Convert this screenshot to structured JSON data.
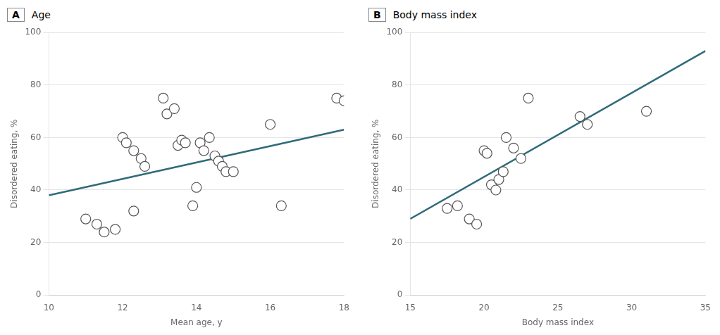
{
  "chart_data": [
    {
      "type": "scatter",
      "title": "Age",
      "annotations": [
        "A"
      ],
      "x_label": "Mean age, y",
      "y_label": "Disordered eating, %",
      "xlim": [
        10,
        18
      ],
      "ylim": [
        0,
        100
      ],
      "xticks": [
        10,
        12,
        14,
        16,
        18
      ],
      "yticks": [
        0,
        20,
        40,
        60,
        80,
        100
      ],
      "grid": "y",
      "series": [
        {
          "type": "line",
          "color": "#2e6b7a",
          "line_style": "solid",
          "x": [
            10,
            18
          ],
          "values": [
            38,
            63
          ]
        },
        {
          "type": "scatter",
          "color": "#555555",
          "marker": "open_circle",
          "x": [
            11.0,
            11.3,
            11.5,
            11.8,
            12.0,
            12.1,
            12.3,
            12.5,
            12.6,
            12.3,
            13.1,
            13.2,
            13.4,
            13.5,
            13.6,
            13.7,
            13.9,
            14.0,
            14.1,
            14.2,
            14.35,
            14.5,
            14.6,
            14.7,
            14.8,
            15.0,
            16.0,
            16.3,
            17.8,
            18.0
          ],
          "values": [
            29,
            27,
            24,
            25,
            60,
            58,
            55,
            52,
            49,
            32,
            75,
            69,
            71,
            57,
            59,
            58,
            34,
            41,
            58,
            55,
            60,
            53,
            51,
            49,
            47,
            47,
            65,
            34,
            75,
            74
          ]
        }
      ]
    },
    {
      "type": "scatter",
      "title": "Body mass index",
      "annotations": [
        "B"
      ],
      "x_label": "Body mass index",
      "y_label": "Disordered eating, %",
      "xlim": [
        15,
        35
      ],
      "ylim": [
        0,
        100
      ],
      "xticks": [
        15,
        20,
        25,
        30,
        35
      ],
      "yticks": [
        0,
        20,
        40,
        60,
        80,
        100
      ],
      "grid": "y",
      "series": [
        {
          "type": "line",
          "color": "#2e6b7a",
          "line_style": "solid",
          "x": [
            15,
            35
          ],
          "values": [
            29,
            93
          ]
        },
        {
          "type": "scatter",
          "color": "#555555",
          "marker": "open_circle",
          "x": [
            17.5,
            18.2,
            19.0,
            19.5,
            20.0,
            20.2,
            20.5,
            20.8,
            21.0,
            21.3,
            21.5,
            22.0,
            22.5,
            23.0,
            26.5,
            27.0,
            31.0
          ],
          "values": [
            33,
            34,
            29,
            27,
            55,
            54,
            42,
            40,
            44,
            47,
            60,
            56,
            52,
            75,
            68,
            65,
            70
          ]
        }
      ]
    }
  ]
}
